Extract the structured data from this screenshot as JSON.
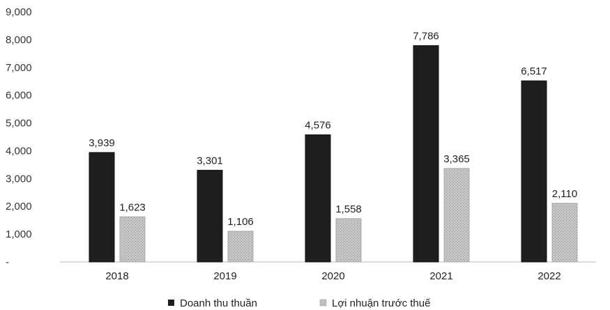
{
  "chart_data": {
    "type": "bar",
    "categories": [
      "2018",
      "2019",
      "2020",
      "2021",
      "2022"
    ],
    "series": [
      {
        "name": "Doanh thu thuần",
        "values": [
          3939,
          3301,
          4576,
          7786,
          6517
        ],
        "labels": [
          "3,939",
          "3,301",
          "4,576",
          "7,786",
          "6,517"
        ],
        "color": "#1e1e1e"
      },
      {
        "name": "Lợi nhuận trước thuế",
        "values": [
          1623,
          1106,
          1558,
          3365,
          2110
        ],
        "labels": [
          "1,623",
          "1,106",
          "1,558",
          "3,365",
          "2,110"
        ],
        "color": "#bdbdbd"
      }
    ],
    "y_ticks": [
      "-",
      "1,000",
      "2,000",
      "3,000",
      "4,000",
      "5,000",
      "6,000",
      "7,000",
      "8,000",
      "9,000"
    ],
    "ylim": [
      0,
      9000
    ],
    "grid": false,
    "legend_position": "bottom-center",
    "title": "",
    "xlabel": "",
    "ylabel": ""
  }
}
